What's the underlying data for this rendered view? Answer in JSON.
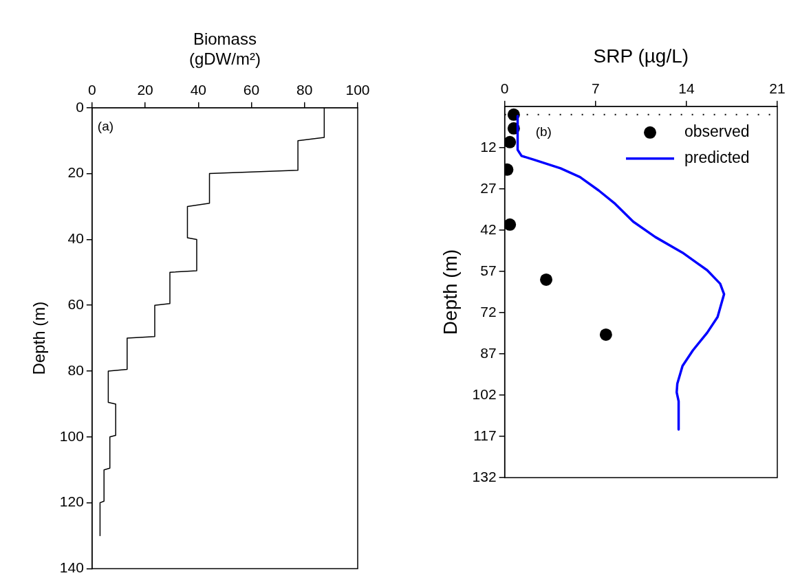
{
  "chart_data": [
    {
      "type": "line",
      "xlabel": "Biomass (gDW/m²)",
      "ylabel": "Depth (m)",
      "xlim": [
        0,
        100
      ],
      "xticks": [
        0,
        20,
        40,
        60,
        80,
        100
      ],
      "ylim": [
        140,
        0
      ],
      "yticks": [
        0,
        20,
        40,
        60,
        80,
        100,
        120,
        140
      ],
      "grid": false,
      "legend": false,
      "marker": "none",
      "annotations": [
        "(a)"
      ],
      "series": [
        {
          "color": "#000000",
          "x": [
            87.4,
            87.4,
            77.5,
            77.5,
            44.2,
            44.2,
            35.9,
            35.9,
            39.4,
            39.4,
            29.3,
            29.3,
            23.6,
            23.6,
            13.2,
            13.2,
            6.1,
            6.1,
            8.9,
            8.9,
            6.7,
            6.7,
            4.5,
            4.5,
            3.0,
            3.0
          ],
          "values": [
            0,
            9,
            10,
            19,
            20,
            29,
            30,
            39.5,
            40,
            49.5,
            50,
            59.5,
            60,
            69.5,
            70,
            79.5,
            80,
            89.5,
            90,
            99.5,
            100,
            109.5,
            110,
            119.5,
            120,
            130
          ]
        }
      ]
    },
    {
      "type": "line",
      "xlabel": "SRP (µg/L)",
      "ylabel": "Depth (m)",
      "xlim": [
        0,
        21
      ],
      "xticks": [
        0,
        7,
        14,
        21
      ],
      "ylim": [
        132,
        -3
      ],
      "yticks": [
        12,
        27,
        42,
        57,
        72,
        87,
        102,
        117,
        132
      ],
      "grid": false,
      "legend": "top right",
      "annotations": [
        "(b)"
      ],
      "ref_lines": [
        {
          "axis": "y",
          "value": 0,
          "color": "#000000",
          "line_style": "dotted"
        }
      ],
      "series": [
        {
          "name": "observed",
          "type": "scatter",
          "marker": "circle",
          "color": "#000000",
          "x": [
            0.7,
            0.7,
            0.4,
            0.2,
            0.4,
            3.2,
            7.8
          ],
          "values": [
            0,
            5,
            10,
            20,
            40,
            60,
            80
          ]
        },
        {
          "name": "predicted",
          "type": "line",
          "marker": "none",
          "color": "#0000ff",
          "x": [
            1.0,
            1.0,
            1.3,
            2.25,
            4.3,
            5.8,
            7.25,
            8.5,
            9.9,
            11.6,
            13.7,
            15.6,
            16.6,
            16.9,
            16.4,
            15.6,
            14.5,
            13.7,
            13.3,
            13.25,
            13.4,
            13.4
          ],
          "values": [
            0.5,
            12.8,
            15,
            16.4,
            19.5,
            22.7,
            27.6,
            32.4,
            38.9,
            44.5,
            50.2,
            56.6,
            61.5,
            65.3,
            73.6,
            79.3,
            85.7,
            91.4,
            97.8,
            101,
            104.2,
            114.5
          ]
        }
      ]
    }
  ]
}
